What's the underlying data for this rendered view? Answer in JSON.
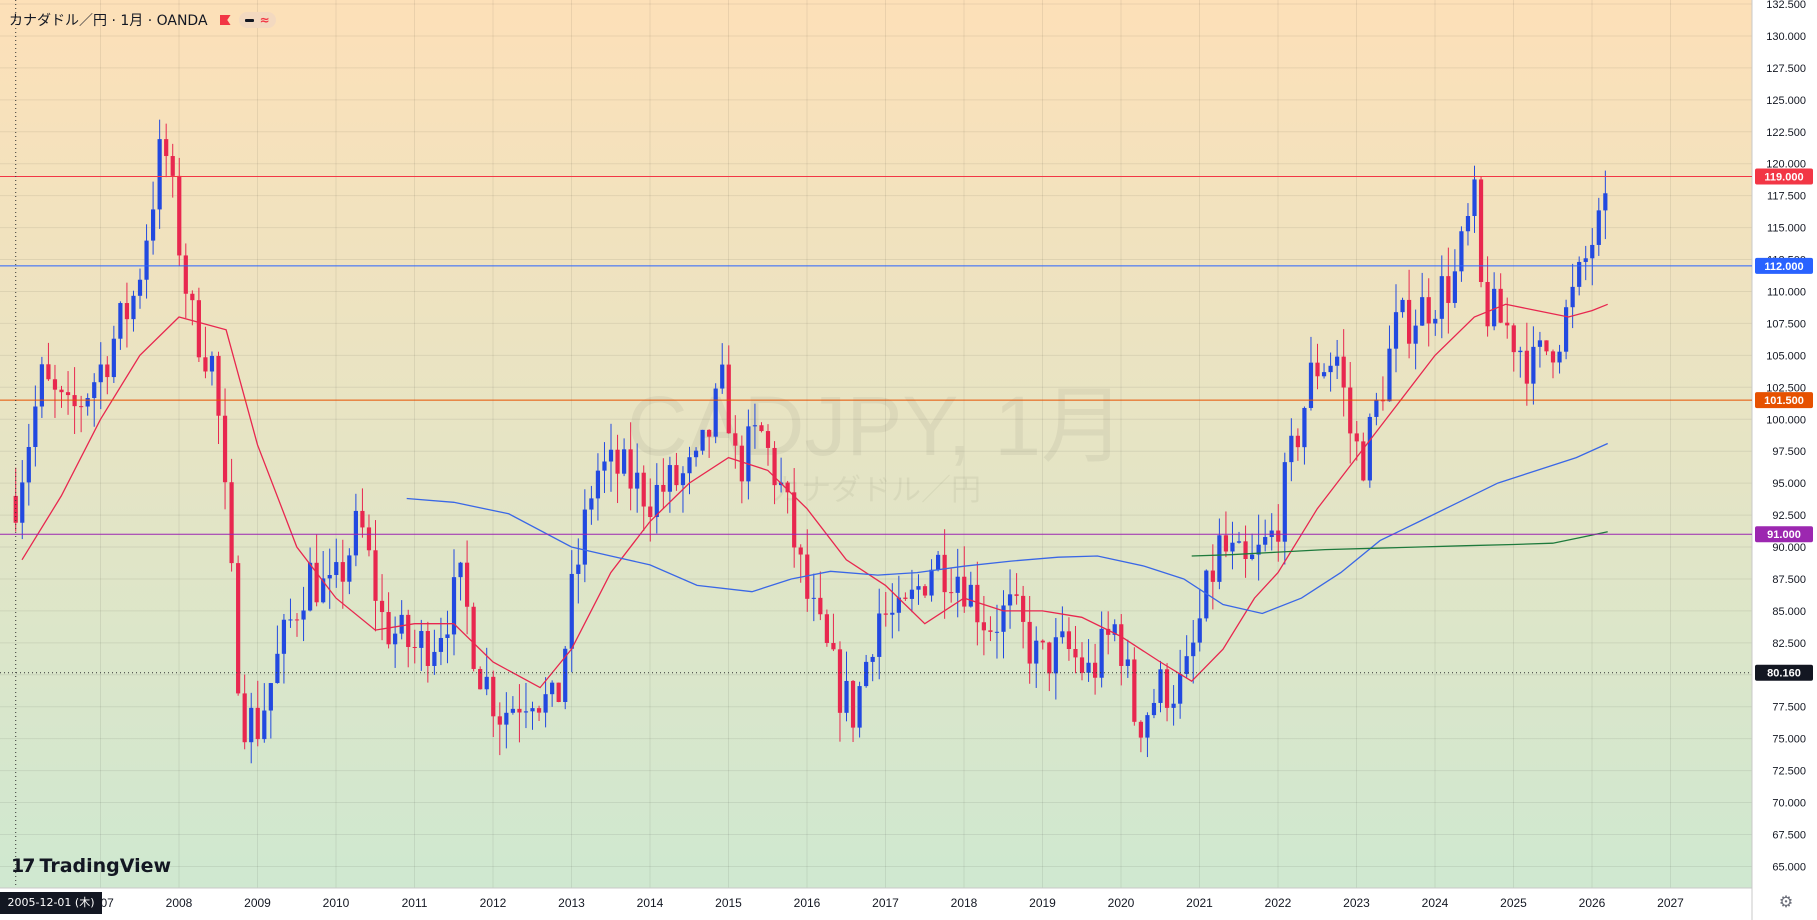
{
  "header": {
    "legend_text": "カナダドル／円 · 1月 · OANDA",
    "flag_icon": "flag-icon",
    "indicator_icons": [
      "minus-icon",
      "approx-icon"
    ]
  },
  "watermark": {
    "symbol": "CADJPY, 1月",
    "name": "カナダドル／円"
  },
  "branding": {
    "logo_mark": "17",
    "logo_text": "TradingView"
  },
  "crosshair": {
    "date_label": "2005-12-01 (木)",
    "price_label": "80.160",
    "price": 80.16
  },
  "colors": {
    "bg_top": "#fde0b8",
    "bg_bottom": "#cfe8d0",
    "up": "#2249e0",
    "down": "#e8274f",
    "sma_short": "#e8274f",
    "sma_mid": "#3a67e6",
    "sma_long": "#1e7a3c"
  },
  "settings_icon": "settings-icon",
  "chart_data": {
    "type": "candlestick",
    "interval": "1 month",
    "yscale": "linear",
    "ylim": [
      63,
      132.5
    ],
    "xlim": [
      "2005-12",
      "2027-12"
    ],
    "grid": true,
    "y_ticks": [
      "65.000",
      "67.500",
      "70.000",
      "72.500",
      "75.000",
      "77.500",
      "80.000",
      "82.500",
      "85.000",
      "87.500",
      "90.000",
      "92.500",
      "95.000",
      "97.500",
      "100.000",
      "102.500",
      "105.000",
      "107.500",
      "110.000",
      "112.500",
      "115.000",
      "117.500",
      "120.000",
      "122.500",
      "125.000",
      "127.500",
      "130.000",
      "132.500"
    ],
    "x_ticks": [
      "2007",
      "2008",
      "2009",
      "2010",
      "2011",
      "2012",
      "2013",
      "2014",
      "2015",
      "2016",
      "2017",
      "2018",
      "2019",
      "2020",
      "2021",
      "2022",
      "2023",
      "2024",
      "2025",
      "2026",
      "2027"
    ],
    "horizontal_lines": [
      {
        "price": 119.0,
        "label": "119.000",
        "color": "#f23645"
      },
      {
        "price": 112.0,
        "label": "112.000",
        "color": "#2962ff"
      },
      {
        "price": 101.5,
        "label": "101.500",
        "color": "#e65100"
      },
      {
        "price": 91.0,
        "label": "91.000",
        "color": "#9c27b0"
      }
    ],
    "yearly_path": [
      [
        2005.92,
        94
      ],
      [
        2006.25,
        103
      ],
      [
        2006.6,
        100
      ],
      [
        2007.0,
        104
      ],
      [
        2007.45,
        110
      ],
      [
        2007.8,
        122
      ],
      [
        2008.15,
        108
      ],
      [
        2008.45,
        104
      ],
      [
        2008.8,
        77
      ],
      [
        2009.0,
        76
      ],
      [
        2009.3,
        82
      ],
      [
        2009.65,
        88
      ],
      [
        2009.95,
        86
      ],
      [
        2010.3,
        92
      ],
      [
        2010.6,
        84
      ],
      [
        2011.0,
        82
      ],
      [
        2011.25,
        83
      ],
      [
        2011.6,
        87
      ],
      [
        2011.8,
        81
      ],
      [
        2012.1,
        77
      ],
      [
        2012.5,
        79
      ],
      [
        2012.8,
        77
      ],
      [
        2013.0,
        86
      ],
      [
        2013.3,
        96
      ],
      [
        2013.6,
        96
      ],
      [
        2014.0,
        94
      ],
      [
        2014.3,
        95
      ],
      [
        2014.6,
        96
      ],
      [
        2014.95,
        103
      ],
      [
        2015.1,
        96
      ],
      [
        2015.4,
        99
      ],
      [
        2015.7,
        94
      ],
      [
        2016.0,
        86
      ],
      [
        2016.4,
        79
      ],
      [
        2016.6,
        77
      ],
      [
        2016.9,
        85
      ],
      [
        2017.2,
        84
      ],
      [
        2017.6,
        89
      ],
      [
        2017.95,
        88
      ],
      [
        2018.3,
        84
      ],
      [
        2018.6,
        85
      ],
      [
        2018.95,
        81
      ],
      [
        2019.3,
        82
      ],
      [
        2019.6,
        80
      ],
      [
        2019.95,
        84
      ],
      [
        2020.2,
        76
      ],
      [
        2020.5,
        79
      ],
      [
        2020.8,
        79
      ],
      [
        2021.0,
        84
      ],
      [
        2021.25,
        90
      ],
      [
        2021.6,
        88
      ],
      [
        2021.95,
        91
      ],
      [
        2022.25,
        99
      ],
      [
        2022.45,
        104
      ],
      [
        2022.75,
        105
      ],
      [
        2022.95,
        98
      ],
      [
        2023.1,
        97
      ],
      [
        2023.5,
        107
      ],
      [
        2023.9,
        109
      ],
      [
        2024.25,
        111
      ],
      [
        2024.5,
        117
      ],
      [
        2024.6,
        109
      ],
      [
        2024.95,
        107
      ],
      [
        2025.25,
        104
      ],
      [
        2025.6,
        107
      ],
      [
        2025.85,
        111
      ],
      [
        2026.0,
        114
      ],
      [
        2026.2,
        116
      ]
    ],
    "sma_short_points": [
      [
        2006.0,
        89
      ],
      [
        2006.5,
        94
      ],
      [
        2007.0,
        100
      ],
      [
        2007.5,
        105
      ],
      [
        2008.0,
        108
      ],
      [
        2008.6,
        107
      ],
      [
        2009.0,
        98
      ],
      [
        2009.5,
        90
      ],
      [
        2010.0,
        86
      ],
      [
        2010.5,
        83.5
      ],
      [
        2011.0,
        84
      ],
      [
        2011.5,
        84
      ],
      [
        2012.0,
        81
      ],
      [
        2012.6,
        79
      ],
      [
        2013.0,
        82
      ],
      [
        2013.5,
        88
      ],
      [
        2014.0,
        92
      ],
      [
        2014.5,
        95
      ],
      [
        2015.0,
        97
      ],
      [
        2015.5,
        96
      ],
      [
        2016.0,
        93
      ],
      [
        2016.5,
        89
      ],
      [
        2017.0,
        87
      ],
      [
        2017.5,
        84
      ],
      [
        2018.0,
        86
      ],
      [
        2018.5,
        85
      ],
      [
        2019.0,
        85
      ],
      [
        2019.5,
        84.5
      ],
      [
        2020.0,
        83
      ],
      [
        2020.5,
        81
      ],
      [
        2020.9,
        79.5
      ],
      [
        2021.3,
        82
      ],
      [
        2021.7,
        86
      ],
      [
        2022.0,
        88
      ],
      [
        2022.5,
        93
      ],
      [
        2023.0,
        97
      ],
      [
        2023.5,
        101
      ],
      [
        2024.0,
        105
      ],
      [
        2024.5,
        108
      ],
      [
        2024.9,
        109
      ],
      [
        2025.3,
        108.5
      ],
      [
        2025.7,
        108
      ],
      [
        2026.0,
        108.5
      ],
      [
        2026.2,
        109
      ]
    ],
    "sma_mid_points": [
      [
        2010.9,
        93.8
      ],
      [
        2011.5,
        93.5
      ],
      [
        2012.2,
        92.6
      ],
      [
        2013.0,
        90
      ],
      [
        2013.5,
        89.3
      ],
      [
        2014.0,
        88.6
      ],
      [
        2014.6,
        87
      ],
      [
        2015.3,
        86.5
      ],
      [
        2015.8,
        87.5
      ],
      [
        2016.3,
        88.1
      ],
      [
        2016.9,
        87.8
      ],
      [
        2017.4,
        88
      ],
      [
        2018.0,
        88.5
      ],
      [
        2018.6,
        88.9
      ],
      [
        2019.2,
        89.2
      ],
      [
        2019.7,
        89.3
      ],
      [
        2020.3,
        88.5
      ],
      [
        2020.8,
        87.5
      ],
      [
        2021.3,
        85.5
      ],
      [
        2021.8,
        84.8
      ],
      [
        2022.3,
        86
      ],
      [
        2022.8,
        88
      ],
      [
        2023.3,
        90.5
      ],
      [
        2023.8,
        92
      ],
      [
        2024.3,
        93.5
      ],
      [
        2024.8,
        95
      ],
      [
        2025.3,
        96
      ],
      [
        2025.8,
        97
      ],
      [
        2026.2,
        98.1
      ]
    ],
    "sma_long_points": [
      [
        2020.9,
        89.3
      ],
      [
        2021.4,
        89.4
      ],
      [
        2022.0,
        89.6
      ],
      [
        2022.6,
        89.8
      ],
      [
        2023.2,
        89.9
      ],
      [
        2023.8,
        90.0
      ],
      [
        2024.4,
        90.1
      ],
      [
        2025.0,
        90.2
      ],
      [
        2025.5,
        90.3
      ],
      [
        2025.9,
        90.8
      ],
      [
        2026.2,
        91.2
      ]
    ]
  }
}
